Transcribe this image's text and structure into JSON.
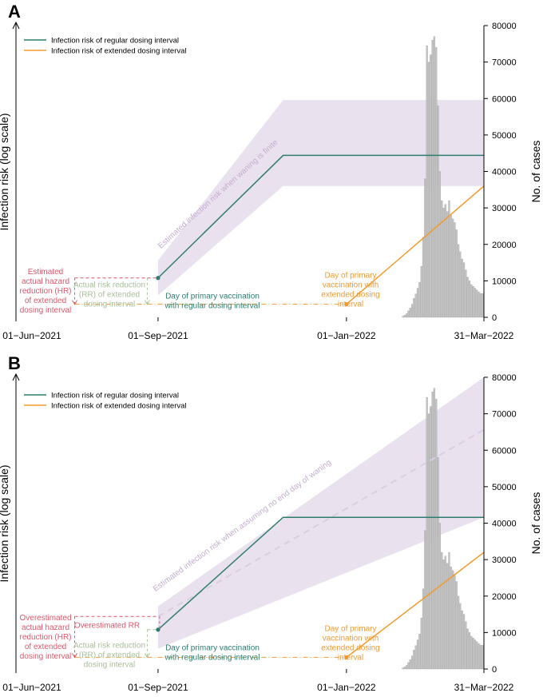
{
  "colors": {
    "regular": "#2e7d6e",
    "extended": "#f39a2e",
    "band": "#e9e1ee",
    "band_text": "#c4aecd",
    "hazard": "#e0566a",
    "rr": "#a7bf9a",
    "bars": "#c4c4c4",
    "bar_edge": "#9a9a9a",
    "dashed_line": "#d9cfe0"
  },
  "chart_data": [
    {
      "panel": "A",
      "type": "line",
      "ylabel": "Infection risk (log scale)",
      "y2label": "No. of cases",
      "y2ticks": [
        "0",
        "10000",
        "20000",
        "30000",
        "40000",
        "50000",
        "60000",
        "70000",
        "80000"
      ],
      "y2lim": [
        0,
        80000
      ],
      "xtick_labels": [
        "01−Jun−2021",
        "01−Sep−2021",
        "01−Jan−2022",
        "31−Mar−2022"
      ],
      "xtick_days": [
        0,
        92,
        214,
        303
      ],
      "xlim_days": [
        0,
        303
      ],
      "ylim_risk": [
        0,
        1
      ],
      "legend": [
        "Infection risk of regular dosing interval",
        "Infection risk of extended dosing interval"
      ],
      "legend_position": "top-left",
      "regular_line": {
        "x": [
          92,
          173,
          303
        ],
        "y": [
          0.135,
          0.555,
          0.555
        ]
      },
      "extended_line": {
        "x": [
          214,
          303
        ],
        "y": [
          0.045,
          0.45
        ]
      },
      "band": {
        "x": [
          92,
          173,
          303
        ],
        "lower": [
          0.075,
          0.45,
          0.45
        ],
        "upper": [
          0.195,
          0.745,
          0.745
        ]
      },
      "dashed_projection": null,
      "band_label": "Estimated infection risk when waning is finite",
      "hazard_level_y": 0.135,
      "rr_level_y": 0.135,
      "baseline_y": 0.045,
      "hazard_x": 38,
      "rr_x": 85,
      "annotations": {
        "hazard": [
          "Estimated",
          "actual hazard",
          "reduction (HR)",
          "of extended",
          "dosing interval"
        ],
        "overestimated_rr": [],
        "rr": [
          "Actual risk reduction",
          "(RR) of extended",
          "dosing interval"
        ],
        "regular_day": [
          "Day of primary vaccination",
          "with regular dosing interval"
        ],
        "extended_day": [
          "Day of primary",
          "vaccination with",
          "extended dosing",
          "interval"
        ]
      }
    },
    {
      "panel": "B",
      "type": "line",
      "ylabel": "Infection risk (log scale)",
      "y2label": "No. of cases",
      "y2ticks": [
        "0",
        "10000",
        "20000",
        "30000",
        "40000",
        "50000",
        "60000",
        "70000",
        "80000"
      ],
      "y2lim": [
        0,
        80000
      ],
      "xtick_labels": [
        "01−Jun−2021",
        "01−Sep−2021",
        "01−Jan−2022",
        "31−Mar−2022"
      ],
      "xtick_days": [
        0,
        92,
        214,
        303
      ],
      "xlim_days": [
        0,
        303
      ],
      "ylim_risk": [
        0,
        1
      ],
      "legend": [
        "Infection risk of regular dosing interval",
        "Infection risk of extended dosing interval"
      ],
      "legend_position": "top-left",
      "regular_line": {
        "x": [
          92,
          173,
          303
        ],
        "y": [
          0.135,
          0.52,
          0.52
        ]
      },
      "extended_line": {
        "x": [
          214,
          303
        ],
        "y": [
          0.04,
          0.4
        ]
      },
      "band": {
        "x": [
          92,
          303
        ],
        "lower": [
          0.07,
          0.52
        ],
        "upper": [
          0.215,
          1.0
        ]
      },
      "dashed_projection": {
        "x": [
          92,
          303
        ],
        "y": [
          0.18,
          0.82
        ]
      },
      "band_label": "Estimated infection risk when assuming no end day of waning",
      "hazard_level_y": 0.18,
      "rr_level_y": 0.135,
      "baseline_y": 0.04,
      "hazard_x": 38,
      "rr_x": 85,
      "annotations": {
        "hazard": [
          "Overestimated",
          "actual hazard",
          "reduction (HR)",
          "of extended",
          "dosing interval"
        ],
        "overestimated_rr": [
          "Overestimated RR"
        ],
        "rr": [
          "Actual risk reduction",
          "(RR) of extended",
          "dosing interval"
        ],
        "regular_day": [
          "Day of primary vaccination",
          "with regular dosing interval"
        ],
        "extended_day": [
          "Day of primary",
          "vaccination with",
          "extended dosing",
          "interval"
        ]
      }
    }
  ],
  "cases_histogram": {
    "start_day": 250,
    "values": [
      300,
      600,
      1000,
      1800,
      2600,
      3600,
      5200,
      6400,
      8000,
      9600,
      14000,
      22000,
      38000,
      74500,
      70000,
      72000,
      76000,
      77000,
      74000,
      58000,
      40000,
      32000,
      30000,
      31000,
      29000,
      32000,
      28000,
      27000,
      26000,
      24000,
      20000,
      18000,
      16000,
      15000,
      13000,
      11000,
      10000,
      9000,
      8500,
      8000,
      7500,
      7000,
      6500,
      6500
    ]
  }
}
